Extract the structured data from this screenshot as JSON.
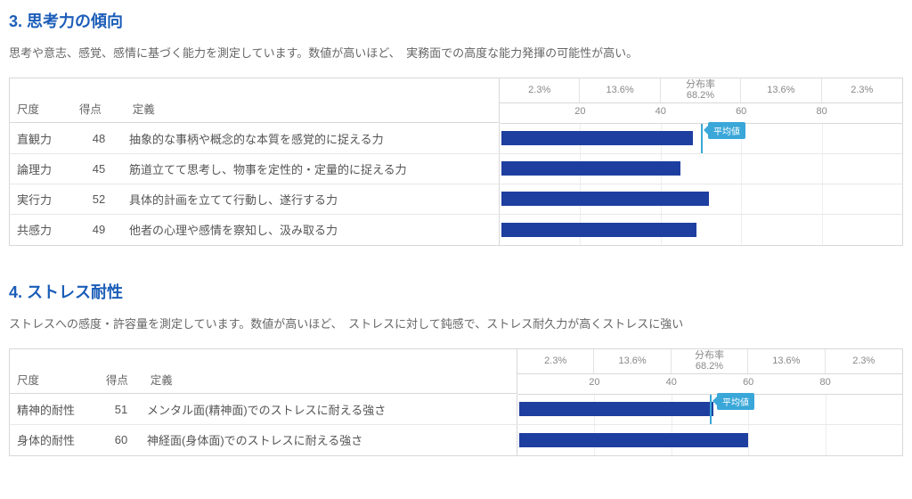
{
  "chart": {
    "xmin": 0,
    "xmax": 100,
    "ticks": [
      20,
      40,
      60,
      80
    ],
    "dist_bands": [
      {
        "from": 0,
        "to": 20,
        "label": "2.3%"
      },
      {
        "from": 20,
        "to": 40,
        "label": "13.6%"
      },
      {
        "from": 40,
        "to": 60,
        "label": "分布率\n68.2%"
      },
      {
        "from": 60,
        "to": 80,
        "label": "13.6%"
      },
      {
        "from": 80,
        "to": 100,
        "label": "2.3%"
      }
    ],
    "bar_color": "#1e3fa0",
    "avg_color": "#3aa7d9",
    "grid_color": "#eeeeee",
    "avg_label": "平均値",
    "avg_value": 50
  },
  "headers": {
    "scale": "尺度",
    "score": "得点",
    "definition": "定義"
  },
  "sections": [
    {
      "id": "sec3",
      "title": "3. 思考力の傾向",
      "desc": "思考や意志、感覚、感情に基づく能力を測定しています。数値が高いほど、　実務面での高度な能力発揮の可能性が高い。",
      "col_widths": {
        "label": 70,
        "score": 60,
        "def": 420
      },
      "rows": [
        {
          "label": "直観力",
          "score": 48,
          "def": "抽象的な事柄や概念的な本質を感覚的に捉える力",
          "show_avg_badge": true
        },
        {
          "label": "論理力",
          "score": 45,
          "def": "筋道立てて思考し、物事を定性的・定量的に捉える力"
        },
        {
          "label": "実行力",
          "score": 52,
          "def": "具体的計画を立てて行動し、遂行する力"
        },
        {
          "label": "共感力",
          "score": 49,
          "def": "他者の心理や感情を察知し、汲み取る力"
        }
      ]
    },
    {
      "id": "sec4",
      "title": "4. ストレス耐性",
      "desc": "ストレスへの感度・許容量を測定しています。数値が高いほど、　ストレスに対して鈍感で、ストレス耐久力が高くストレスに強い",
      "col_widths": {
        "label": 100,
        "score": 50,
        "def": 420
      },
      "rows": [
        {
          "label": "精神的耐性",
          "score": 51,
          "def": "メンタル面(精神面)でのストレスに耐える強さ",
          "show_avg_badge": true
        },
        {
          "label": "身体的耐性",
          "score": 60,
          "def": "神経面(身体面)でのストレスに耐える強さ"
        }
      ]
    }
  ]
}
